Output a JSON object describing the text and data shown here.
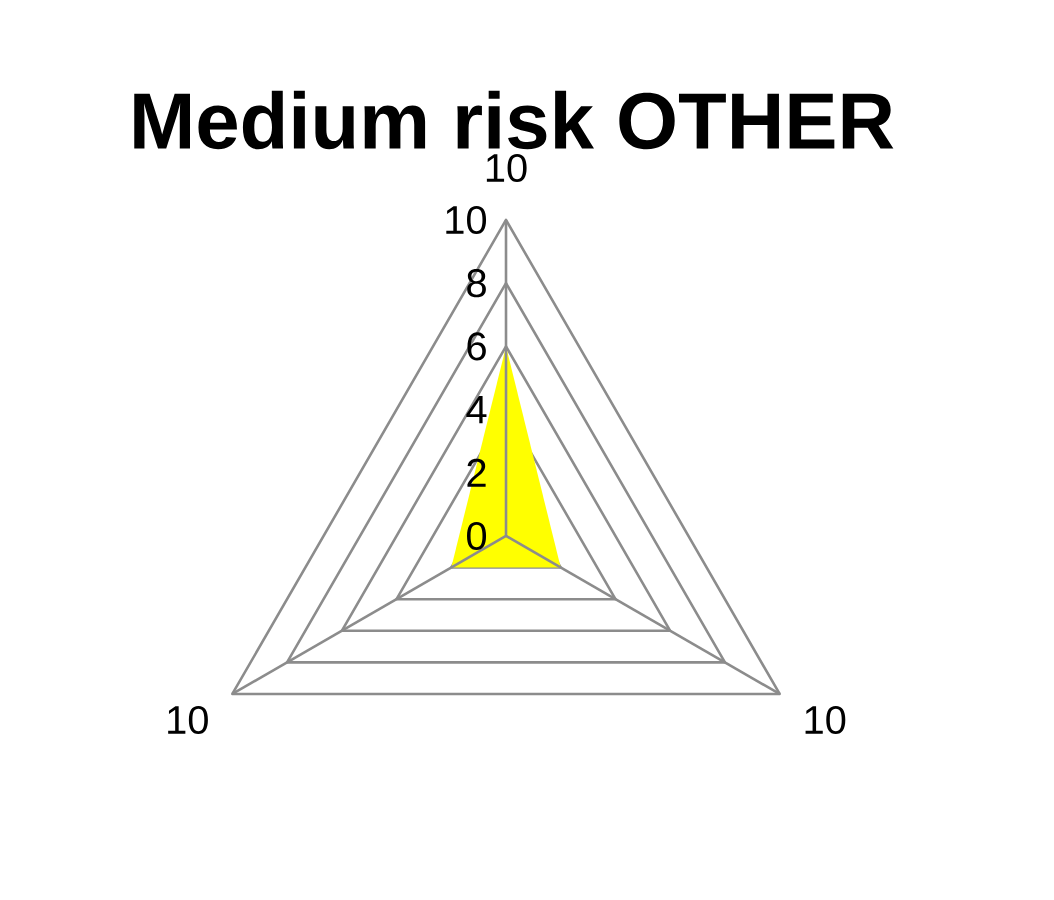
{
  "chart_data": {
    "type": "radar",
    "title": "Medium risk OTHER",
    "categories": [
      "10",
      "10",
      "10"
    ],
    "series": [
      {
        "color": "#ffff00",
        "values": [
          6,
          2,
          2
        ]
      }
    ],
    "ylim": [
      0,
      10
    ],
    "yticks": [
      0,
      2,
      4,
      6,
      8,
      10
    ],
    "grid": true
  }
}
